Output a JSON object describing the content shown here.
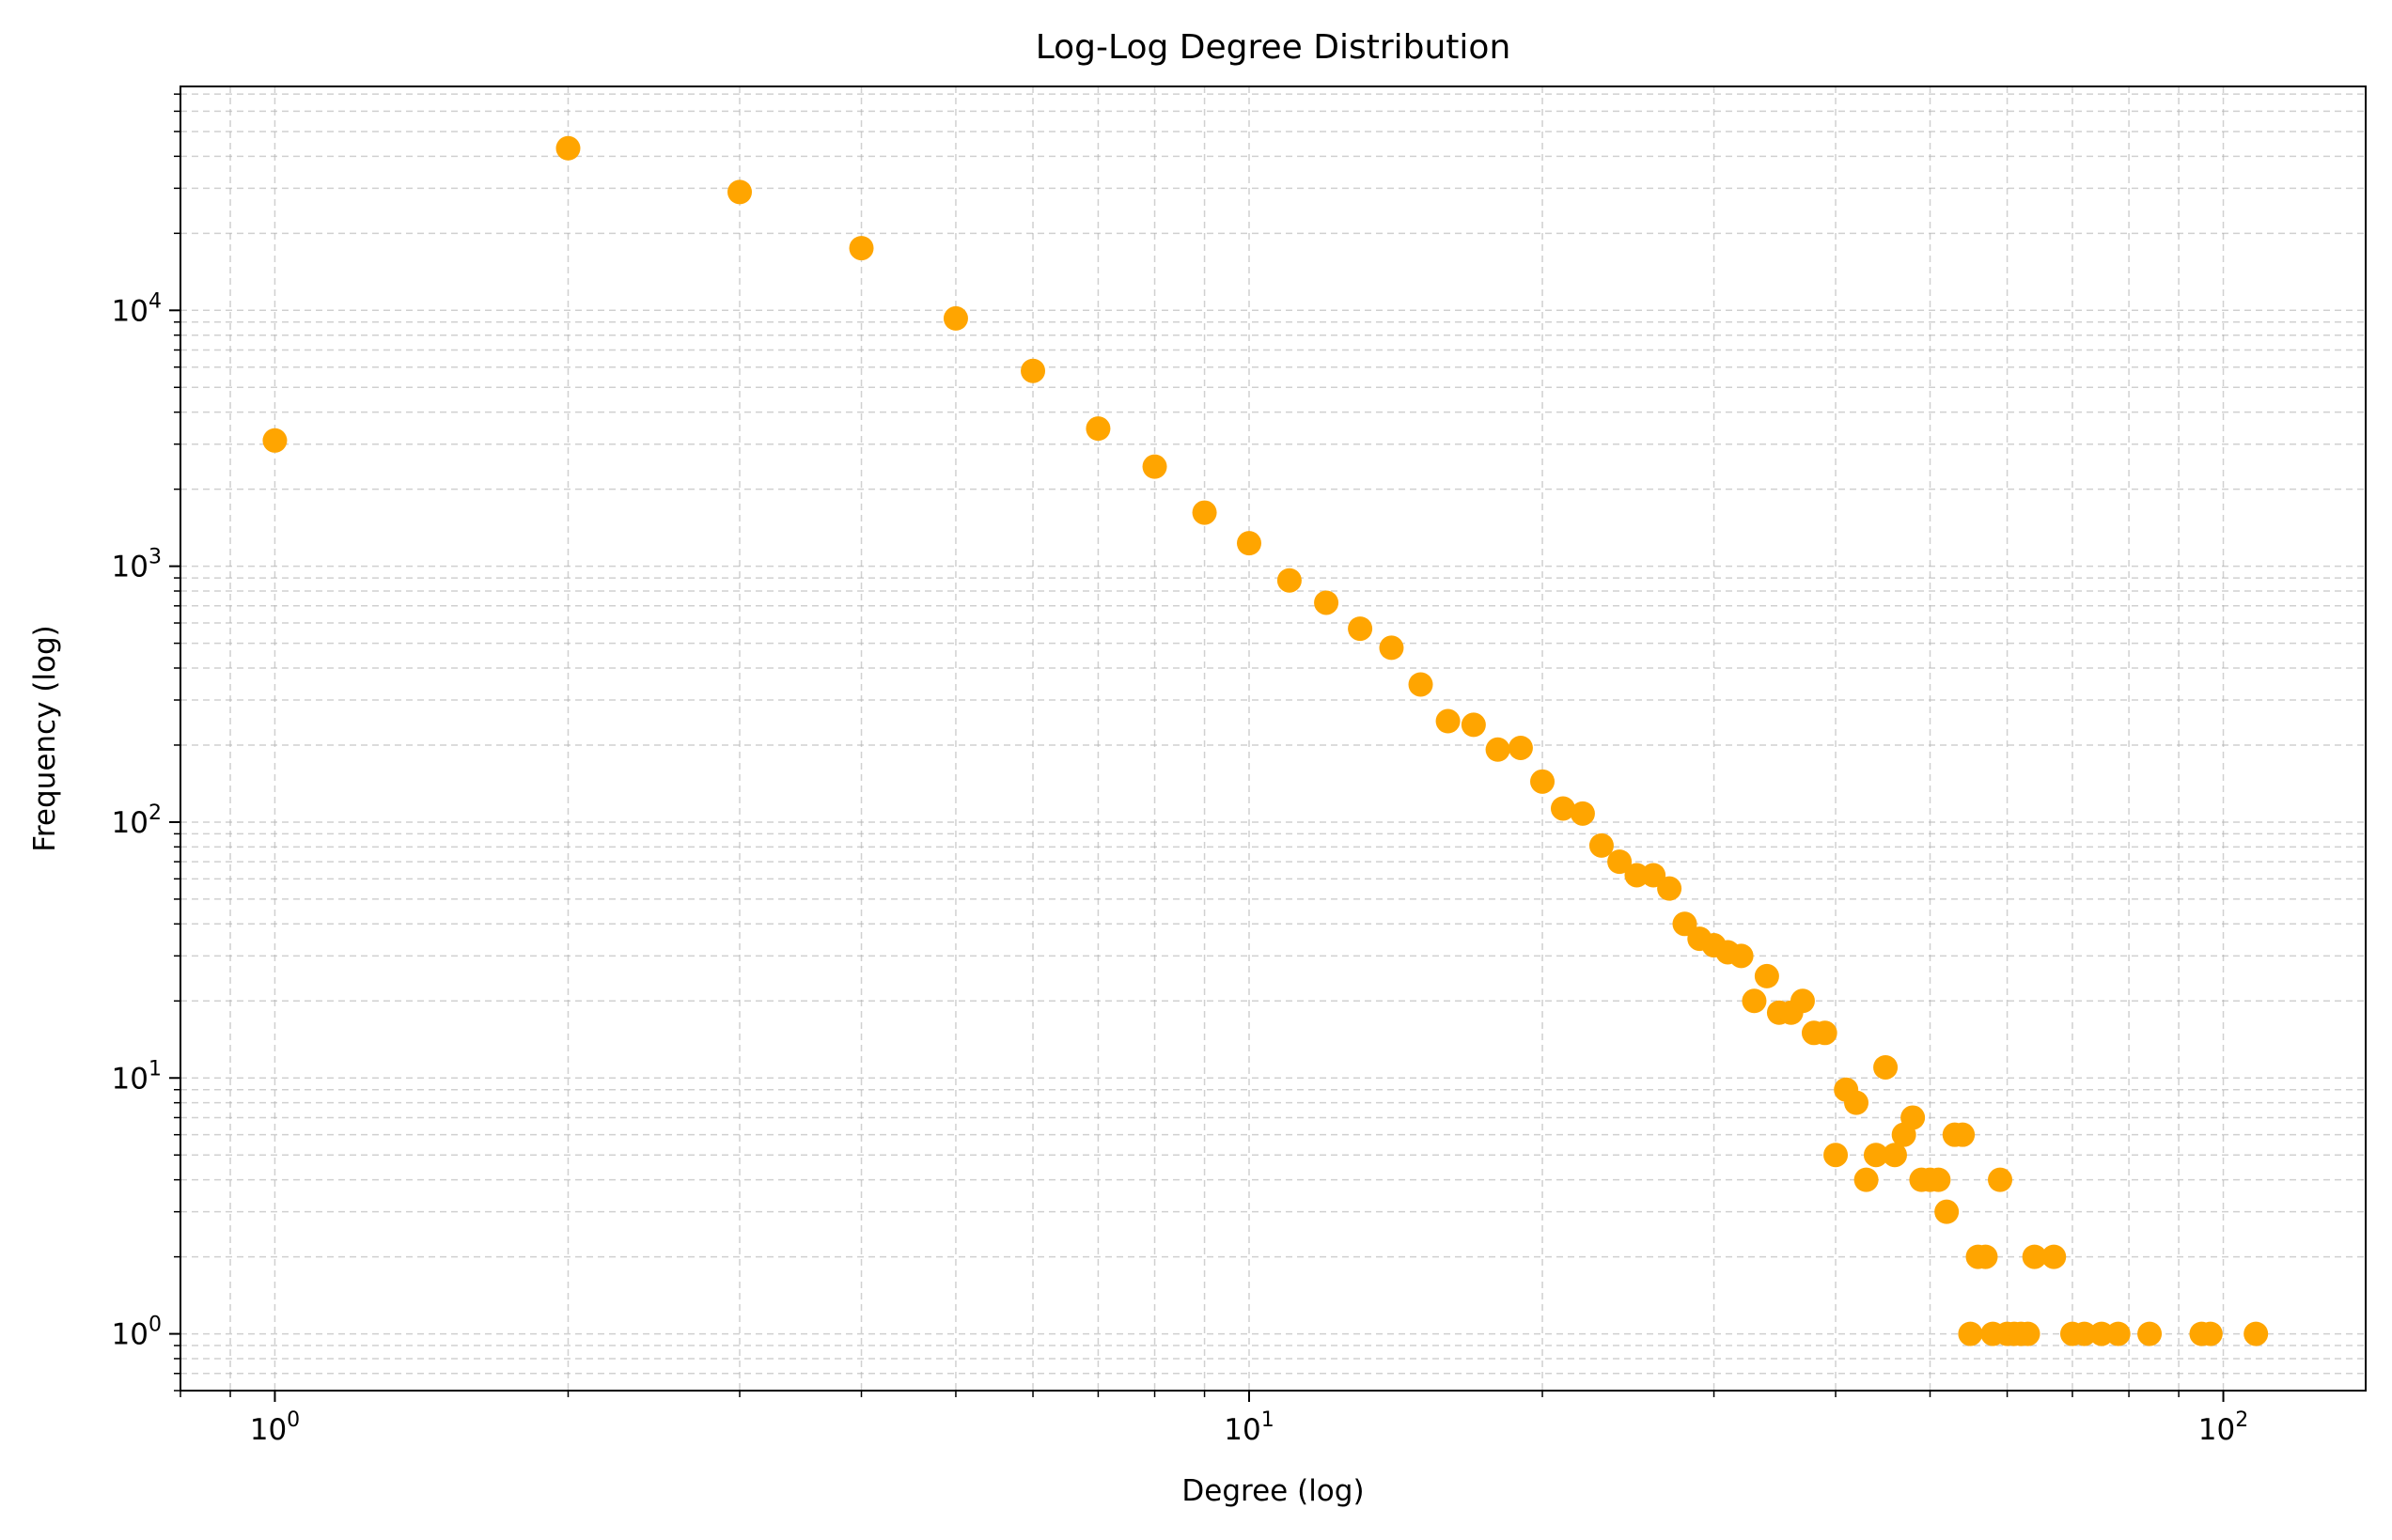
{
  "chart_data": {
    "type": "scatter",
    "title": "Log-Log Degree Distribution",
    "xlabel": "Degree (log)",
    "ylabel": "Frequency (log)",
    "x_scale": "log",
    "y_scale": "log",
    "xlim": [
      0.8,
      140
    ],
    "ylim": [
      0.6,
      75000
    ],
    "x_ticks": [
      {
        "base": "10",
        "exp": "0",
        "value": 1
      },
      {
        "base": "10",
        "exp": "1",
        "value": 10
      },
      {
        "base": "10",
        "exp": "2",
        "value": 100
      }
    ],
    "y_ticks": [
      {
        "base": "10",
        "exp": "0",
        "value": 1
      },
      {
        "base": "10",
        "exp": "1",
        "value": 10
      },
      {
        "base": "10",
        "exp": "2",
        "value": 100
      },
      {
        "base": "10",
        "exp": "3",
        "value": 1000
      },
      {
        "base": "10",
        "exp": "4",
        "value": 10000
      }
    ],
    "grid": true,
    "legend": "none",
    "marker_color": "#FFA500",
    "points": [
      [
        1,
        3100
      ],
      [
        2,
        43000
      ],
      [
        3,
        29000
      ],
      [
        4,
        17500
      ],
      [
        5,
        9300
      ],
      [
        6,
        5800
      ],
      [
        7,
        3450
      ],
      [
        8,
        2450
      ],
      [
        9,
        1620
      ],
      [
        10,
        1230
      ],
      [
        11,
        880
      ],
      [
        12,
        720
      ],
      [
        13,
        570
      ],
      [
        14,
        480
      ],
      [
        15,
        345
      ],
      [
        16,
        248
      ],
      [
        17,
        240
      ],
      [
        18,
        192
      ],
      [
        19,
        195
      ],
      [
        20,
        144
      ],
      [
        21,
        113
      ],
      [
        22,
        108
      ],
      [
        23,
        81
      ],
      [
        24,
        70
      ],
      [
        25,
        62
      ],
      [
        26,
        62
      ],
      [
        27,
        55
      ],
      [
        28,
        40
      ],
      [
        29,
        35
      ],
      [
        30,
        33
      ],
      [
        31,
        31
      ],
      [
        32,
        30
      ],
      [
        33,
        20
      ],
      [
        34,
        25
      ],
      [
        35,
        18
      ],
      [
        36,
        18
      ],
      [
        37,
        20
      ],
      [
        38,
        15
      ],
      [
        39,
        15
      ],
      [
        40,
        5
      ],
      [
        41,
        9
      ],
      [
        42,
        8
      ],
      [
        43,
        4
      ],
      [
        44,
        5
      ],
      [
        45,
        11
      ],
      [
        46,
        5
      ],
      [
        47,
        6
      ],
      [
        48,
        7
      ],
      [
        49,
        4
      ],
      [
        50,
        4
      ],
      [
        51,
        4
      ],
      [
        52,
        3
      ],
      [
        53,
        6
      ],
      [
        54,
        6
      ],
      [
        55,
        1
      ],
      [
        56,
        2
      ],
      [
        57,
        2
      ],
      [
        58,
        1
      ],
      [
        59,
        4
      ],
      [
        60,
        1
      ],
      [
        61,
        1
      ],
      [
        62,
        1
      ],
      [
        63,
        1
      ],
      [
        64,
        2
      ],
      [
        67,
        2
      ],
      [
        70,
        1
      ],
      [
        72,
        1
      ],
      [
        75,
        1
      ],
      [
        78,
        1
      ],
      [
        84,
        1
      ],
      [
        95,
        1
      ],
      [
        97,
        1
      ],
      [
        108,
        1
      ]
    ]
  }
}
